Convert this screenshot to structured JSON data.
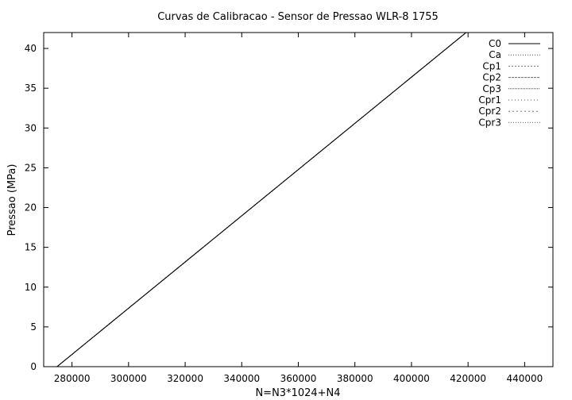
{
  "chart_data": {
    "type": "line",
    "title": "Curvas de Calibracao - Sensor de Pressao WLR-8 1755",
    "xlabel": "N=N3*1024+N4",
    "ylabel": "Pressao (MPa)",
    "xlim": [
      270000,
      450000
    ],
    "ylim": [
      0,
      42
    ],
    "x_ticks": [
      280000,
      300000,
      320000,
      340000,
      360000,
      380000,
      400000,
      420000,
      440000
    ],
    "y_ticks": [
      0,
      5,
      10,
      15,
      20,
      25,
      30,
      35,
      40
    ],
    "grid": false,
    "legend_position": "top-right",
    "series": [
      {
        "name": "C0",
        "color": "#000000",
        "dash": "",
        "x": [
          274700,
          419300
        ],
        "y": [
          0,
          42
        ]
      },
      {
        "name": "Ca",
        "color": "#555555",
        "dash": "1,2",
        "x": [
          274700,
          419300
        ],
        "y": [
          0,
          42
        ]
      },
      {
        "name": "Cp1",
        "color": "#777777",
        "dash": "2,2",
        "x": [
          274700,
          419300
        ],
        "y": [
          0,
          42
        ]
      },
      {
        "name": "Cp2",
        "color": "#666666",
        "dash": "3,1",
        "x": [
          274700,
          419300
        ],
        "y": [
          0,
          42
        ]
      },
      {
        "name": "Cp3",
        "color": "#444444",
        "dash": "1,1",
        "x": [
          274700,
          419300
        ],
        "y": [
          0,
          42
        ]
      },
      {
        "name": "Cpr1",
        "color": "#555555",
        "dash": "1,3",
        "x": [
          274700,
          419300
        ],
        "y": [
          0,
          42
        ]
      },
      {
        "name": "Cpr2",
        "color": "#777777",
        "dash": "2,3",
        "x": [
          274700,
          419300
        ],
        "y": [
          0,
          42
        ]
      },
      {
        "name": "Cpr3",
        "color": "#666666",
        "dash": "1,2",
        "x": [
          274700,
          419300
        ],
        "y": [
          0,
          42
        ]
      }
    ]
  }
}
